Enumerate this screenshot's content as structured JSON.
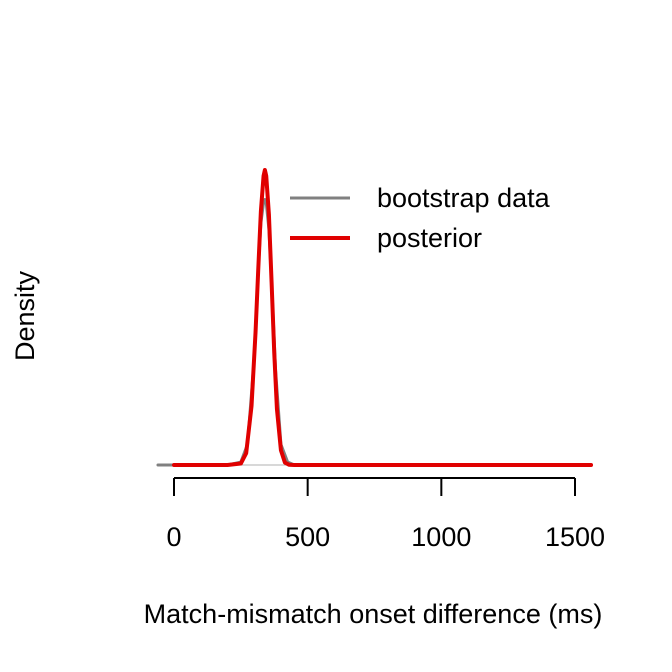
{
  "chart_data": {
    "type": "line",
    "title": "",
    "xlabel": "Match-mismatch onset difference (ms)",
    "ylabel": "Density",
    "xlim": [
      -60,
      1560
    ],
    "ylim": [
      0,
      1.0
    ],
    "x_ticks": [
      0,
      500,
      1000,
      1500
    ],
    "x_tick_labels": [
      "0",
      "500",
      "1000",
      "1500"
    ],
    "y_ticks_shown": false,
    "grid": false,
    "legend": {
      "position": "top-right",
      "entries": [
        "bootstrap data",
        "posterior"
      ]
    },
    "series": [
      {
        "name": "bootstrap data",
        "color": "#808080",
        "x": [
          -60,
          0,
          100,
          200,
          250,
          275,
          300,
          315,
          325,
          335,
          340,
          345,
          355,
          365,
          380,
          400,
          425,
          450,
          500,
          750,
          1000,
          1250,
          1500,
          1560
        ],
        "y": [
          0,
          0,
          0,
          0,
          0.01,
          0.07,
          0.36,
          0.66,
          0.82,
          0.89,
          0.9,
          0.89,
          0.8,
          0.62,
          0.32,
          0.07,
          0.01,
          0,
          0,
          0,
          0,
          0,
          0,
          0
        ]
      },
      {
        "name": "posterior",
        "color": "#e00000",
        "x": [
          0,
          100,
          200,
          250,
          270,
          290,
          305,
          315,
          325,
          335,
          340,
          345,
          355,
          365,
          375,
          385,
          400,
          415,
          430,
          450,
          500,
          750,
          1000,
          1250,
          1500,
          1560
        ],
        "y": [
          0,
          0,
          0,
          0.005,
          0.04,
          0.2,
          0.45,
          0.66,
          0.86,
          0.98,
          1.0,
          0.98,
          0.85,
          0.62,
          0.38,
          0.19,
          0.05,
          0.008,
          0.001,
          0,
          0,
          0,
          0,
          0,
          0,
          0
        ]
      }
    ]
  }
}
